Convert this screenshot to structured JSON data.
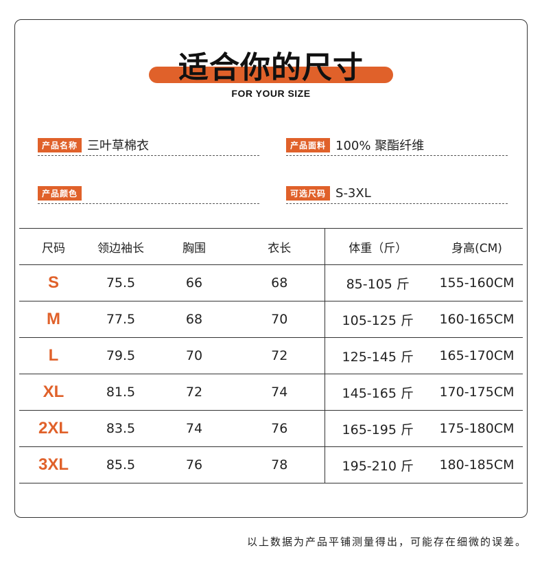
{
  "header": {
    "title": "适合你的尺寸",
    "subtitle": "FOR YOUR SIZE"
  },
  "info": [
    {
      "label": "产品名称",
      "value": "三叶草棉衣"
    },
    {
      "label": "产品面料",
      "value": "100% 聚酯纤维"
    },
    {
      "label": "产品颜色",
      "value": ""
    },
    {
      "label": "可选尺码",
      "value": "S-3XL"
    }
  ],
  "table": {
    "headers": [
      "尺码",
      "领边袖长",
      "胸围",
      "衣长",
      "体重（斤）",
      "身高(CM)"
    ],
    "rows": [
      [
        "S",
        "75.5",
        "66",
        "68",
        "85-105 斤",
        "155-160CM"
      ],
      [
        "M",
        "77.5",
        "68",
        "70",
        "105-125 斤",
        "160-165CM"
      ],
      [
        "L",
        "79.5",
        "70",
        "72",
        "125-145 斤",
        "165-170CM"
      ],
      [
        "XL",
        "81.5",
        "72",
        "74",
        "145-165 斤",
        "170-175CM"
      ],
      [
        "2XL",
        "83.5",
        "74",
        "76",
        "165-195 斤",
        "175-180CM"
      ],
      [
        "3XL",
        "85.5",
        "76",
        "78",
        "195-210 斤",
        "180-185CM"
      ]
    ]
  },
  "note": "以上数据为产品平铺测量得出，可能存在细微的误差。",
  "colors": {
    "accent": "#e0612a"
  }
}
